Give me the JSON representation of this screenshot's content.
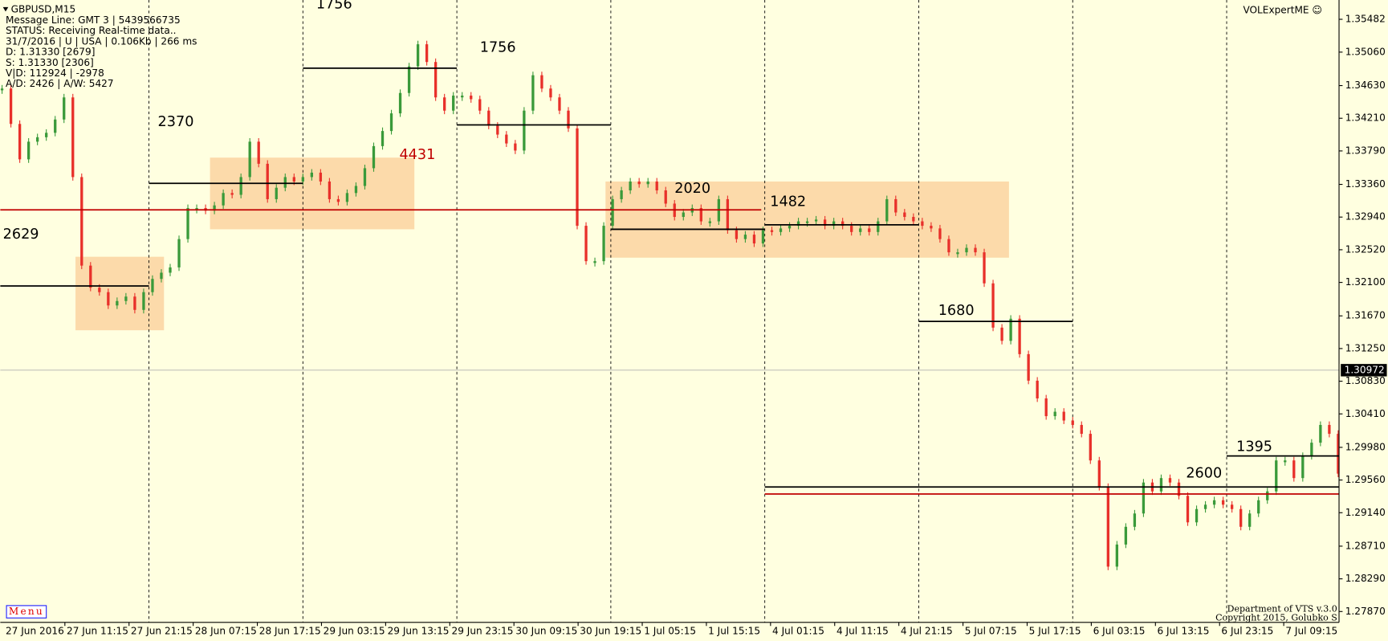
{
  "chart_data": {
    "type": "candlestick",
    "title": "GBPUSD,M15",
    "info_lines": [
      "Message Line: GMT 3 | 5439566735",
      "STATUS:  Receiving Real-time data..",
      "31/7/2016 | U | USA | 0.106Kb | 266 ms",
      "D: 1.31330  [2679]",
      "S: 1.31330  [2306]",
      "V|D: 112924 | -2978",
      "A/D: 2426 | A/W: 5427"
    ],
    "indicator_name": "VOLExpertME ☺",
    "menu": "Menu",
    "footer": [
      "Department of VTS  v.3.0",
      "Copyright 2015, Golubko S"
    ],
    "up_color": "#3a9a3a",
    "down_color": "#e8302a",
    "values": [
      1.34592,
      1.34137,
      1.33682,
      1.33909,
      1.33966,
      1.34023,
      1.34194,
      1.34478,
      1.33454,
      1.32316,
      1.32032,
      1.31975,
      1.31804,
      1.31861,
      1.31918,
      1.31747,
      1.31975,
      1.32145,
      1.32225,
      1.32293,
      1.32657,
      1.33056,
      1.33056,
      1.33022,
      1.3309,
      1.33249,
      1.33226,
      1.33454,
      1.33909,
      1.33625,
      1.3317,
      1.33317,
      1.33454,
      1.33397,
      1.33454,
      1.33511,
      1.33397,
      1.3317,
      1.33135,
      1.33249,
      1.3334,
      1.33568,
      1.33852,
      1.34046,
      1.34273,
      1.34535,
      1.34877,
      1.35161,
      1.34933,
      1.34478,
      1.34308,
      1.34501,
      1.34501,
      1.34455,
      1.34308,
      1.34114,
      1.34,
      1.33886,
      1.33795,
      1.34308,
      1.34763,
      1.34592,
      1.34478,
      1.34308,
      1.3408,
      1.32828,
      1.32373,
      1.32373,
      1.32828,
      1.3317,
      1.33283,
      1.33397,
      1.33363,
      1.33397,
      1.33283,
      1.33113,
      1.32942,
      1.32999,
      1.33056,
      1.32885,
      1.32885,
      1.3317,
      1.32771,
      1.32657,
      1.32714,
      1.32601,
      1.32771,
      1.32748,
      1.32794,
      1.32828,
      1.32885,
      1.32885,
      1.32908,
      1.32828,
      1.32885,
      1.32828,
      1.32748,
      1.32794,
      1.32748,
      1.32885,
      1.3317,
      1.32999,
      1.32942,
      1.32885,
      1.32828,
      1.32794,
      1.32657,
      1.32487,
      1.32487,
      1.32544,
      1.32487,
      1.32088,
      1.31519,
      1.31349,
      1.31633,
      1.31178,
      1.30837,
      1.30609,
      1.30381,
      1.30438,
      1.30325,
      1.30268,
      1.30154,
      1.29812,
      1.29471,
      1.28447,
      1.28731,
      1.28959,
      1.2913,
      1.29528,
      1.29414,
      1.29585,
      1.29528,
      1.29357,
      1.29016,
      1.29187,
      1.29243,
      1.293,
      1.29243,
      1.29187,
      1.28959,
      1.2913,
      1.293,
      1.29414,
      1.29812,
      1.29812,
      1.29585,
      1.29869,
      1.3004,
      1.30268,
      1.30154,
      1.29642
    ],
    "current_price": 1.30972,
    "ylim": [
      1.2773,
      1.3573
    ],
    "yticks": [
      1.35482,
      {
        "value": 1.3506,
        "label": "1.35060"
      },
      {
        "value": 1.3463,
        "label": "1.34630"
      },
      {
        "value": 1.3421,
        "label": "1.34210"
      },
      {
        "value": 1.3379,
        "label": "1.33790"
      },
      {
        "value": 1.3336,
        "label": "1.33360"
      },
      {
        "value": 1.3294,
        "label": "1.32940"
      },
      {
        "value": 1.3252,
        "label": "1.32520"
      },
      {
        "value": 1.321,
        "label": "1.32100"
      },
      {
        "value": 1.3167,
        "label": "1.31670"
      },
      {
        "value": 1.3125,
        "label": "1.31250"
      },
      {
        "value": 1.3083,
        "label": "1.30830"
      },
      {
        "value": 1.3041,
        "label": "1.30410"
      },
      {
        "value": 1.2998,
        "label": "1.29980"
      },
      {
        "value": 1.2956,
        "label": "1.29560"
      },
      {
        "value": 1.2914,
        "label": "1.29140"
      },
      {
        "value": 1.2871,
        "label": "1.28710"
      },
      {
        "value": 1.2829,
        "label": "1.28290"
      },
      {
        "value": 1.2787,
        "label": "1.27870"
      }
    ],
    "x_labels": [
      "27 Jun 2016",
      "27 Jun 11:15",
      "27 Jun 21:15",
      "28 Jun 07:15",
      "28 Jun 17:15",
      "29 Jun 03:15",
      "29 Jun 13:15",
      "29 Jun 23:15",
      "30 Jun 09:15",
      "30 Jun 19:15",
      "1 Jul 05:15",
      "1 Jul 15:15",
      "4 Jul 01:15",
      "4 Jul 11:15",
      "4 Jul 21:15",
      "5 Jul 07:15",
      "5 Jul 17:15",
      "6 Jul 03:15",
      "6 Jul 13:15",
      "6 Jul 23:15",
      "7 Jul 09:15"
    ],
    "zones": [
      {
        "top": 1.3243,
        "bottom": 1.31485
      },
      {
        "top": 1.33704,
        "bottom": 1.32783
      },
      {
        "top": 1.33397,
        "bottom": 1.32418
      }
    ],
    "zone_color": "#fcd3a0",
    "levels": [
      {
        "label": "2629",
        "price": 1.32054,
        "color": "#000000"
      },
      {
        "label": "2370",
        "price": 1.33374,
        "color": "#000000"
      },
      {
        "label": "1756",
        "price": 1.34854,
        "color": "#000000"
      },
      {
        "label": "1756",
        "price": 1.34125,
        "color": "#000000"
      },
      {
        "label": "4431",
        "price": 1.33033,
        "color": "#c00000"
      },
      {
        "label": "2020",
        "price": 1.32783,
        "color": "#000000"
      },
      {
        "label": "1482",
        "price": 1.3284,
        "color": "#000000"
      },
      {
        "label": "1680",
        "price": 1.31599,
        "color": "#000000"
      },
      {
        "label": "2600",
        "price": 1.29471,
        "color": "#000000"
      },
      {
        "price": 1.2938,
        "color": "#c00000"
      },
      {
        "label": "1395",
        "price": 1.29869,
        "color": "#000000"
      }
    ]
  }
}
